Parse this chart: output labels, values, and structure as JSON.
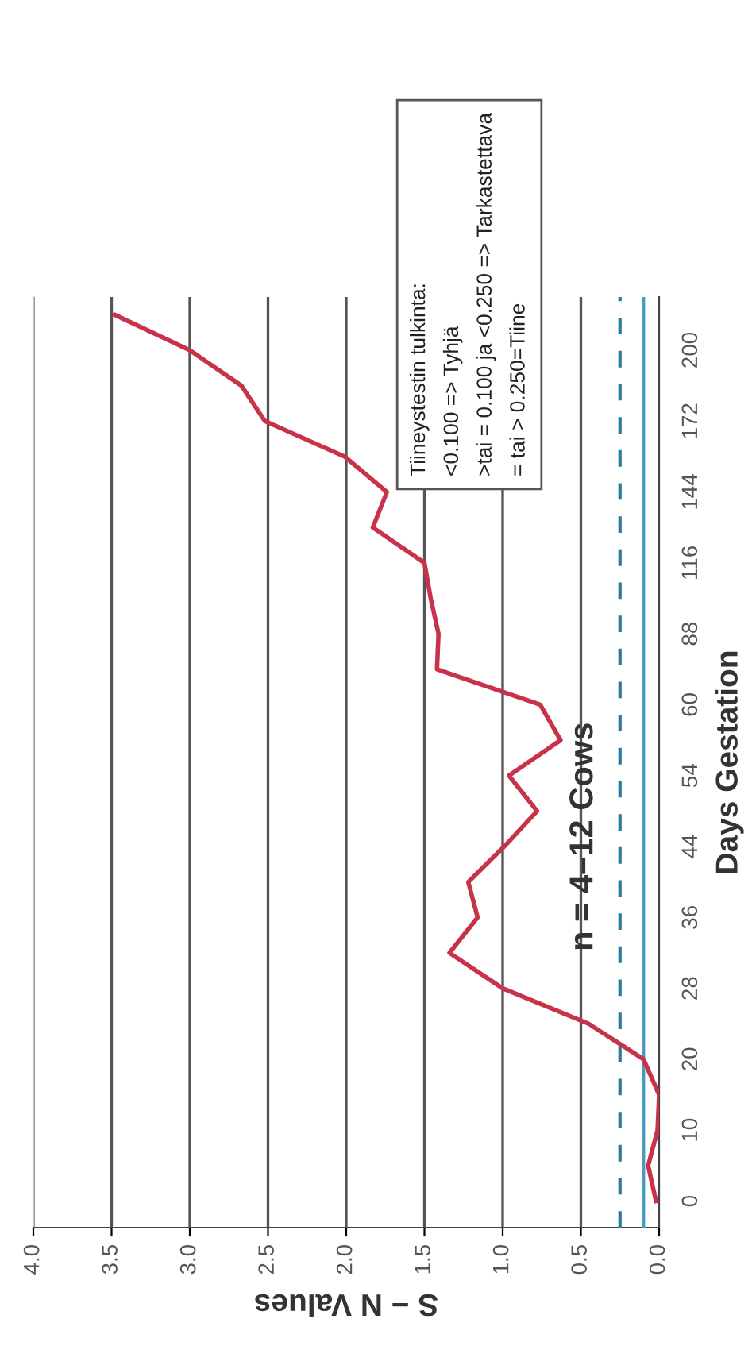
{
  "chart_data": {
    "type": "line",
    "orientation": "horizontal",
    "title": "n = 4–12 Cows",
    "xlabel": "S − N Values",
    "ylabel": "Days Gestation",
    "categories": [
      null,
      "200",
      null,
      "172",
      null,
      "144",
      null,
      "116",
      null,
      "88",
      null,
      "60",
      null,
      "54",
      null,
      "44",
      null,
      "36",
      null,
      "28",
      null,
      "20",
      null,
      "10",
      null,
      "0"
    ],
    "series": [
      {
        "color": "#c8324a",
        "values": [
          3.48,
          3.0,
          2.67,
          2.52,
          2.01,
          1.74,
          1.83,
          1.5,
          1.46,
          1.41,
          1.42,
          0.76,
          0.63,
          0.96,
          0.78,
          0.99,
          1.22,
          1.16,
          1.34,
          1.0,
          0.45,
          0.1,
          0.0,
          0.01,
          0.07,
          0.02
        ]
      }
    ],
    "xlim": [
      4,
      0
    ],
    "xticks": [
      {
        "value": 4,
        "label": "4.0"
      },
      3.5,
      {
        "value": 3,
        "label": "3.0"
      },
      2.5,
      {
        "value": 2,
        "label": "2.0"
      },
      1.5,
      {
        "value": 1,
        "label": "1.0"
      },
      0.5,
      {
        "value": 0,
        "label": "0.0"
      }
    ],
    "grid": "x",
    "marker": "none",
    "line_style": "solid",
    "ref_lines": [
      {
        "axis": "x",
        "value": 0.25,
        "color": "#2a7a9a",
        "line_style": "dashed"
      },
      {
        "axis": "x",
        "value": 0.1,
        "color": "#4a9ac0",
        "line_style": "solid"
      }
    ],
    "annotations": [
      "Tiineystestin tulkinta:\n<0.100 => Tyhjä\n>tai = 0.100 ja <0.250 => Tarkastettava\n= tai > 0.250=Tiine"
    ]
  }
}
